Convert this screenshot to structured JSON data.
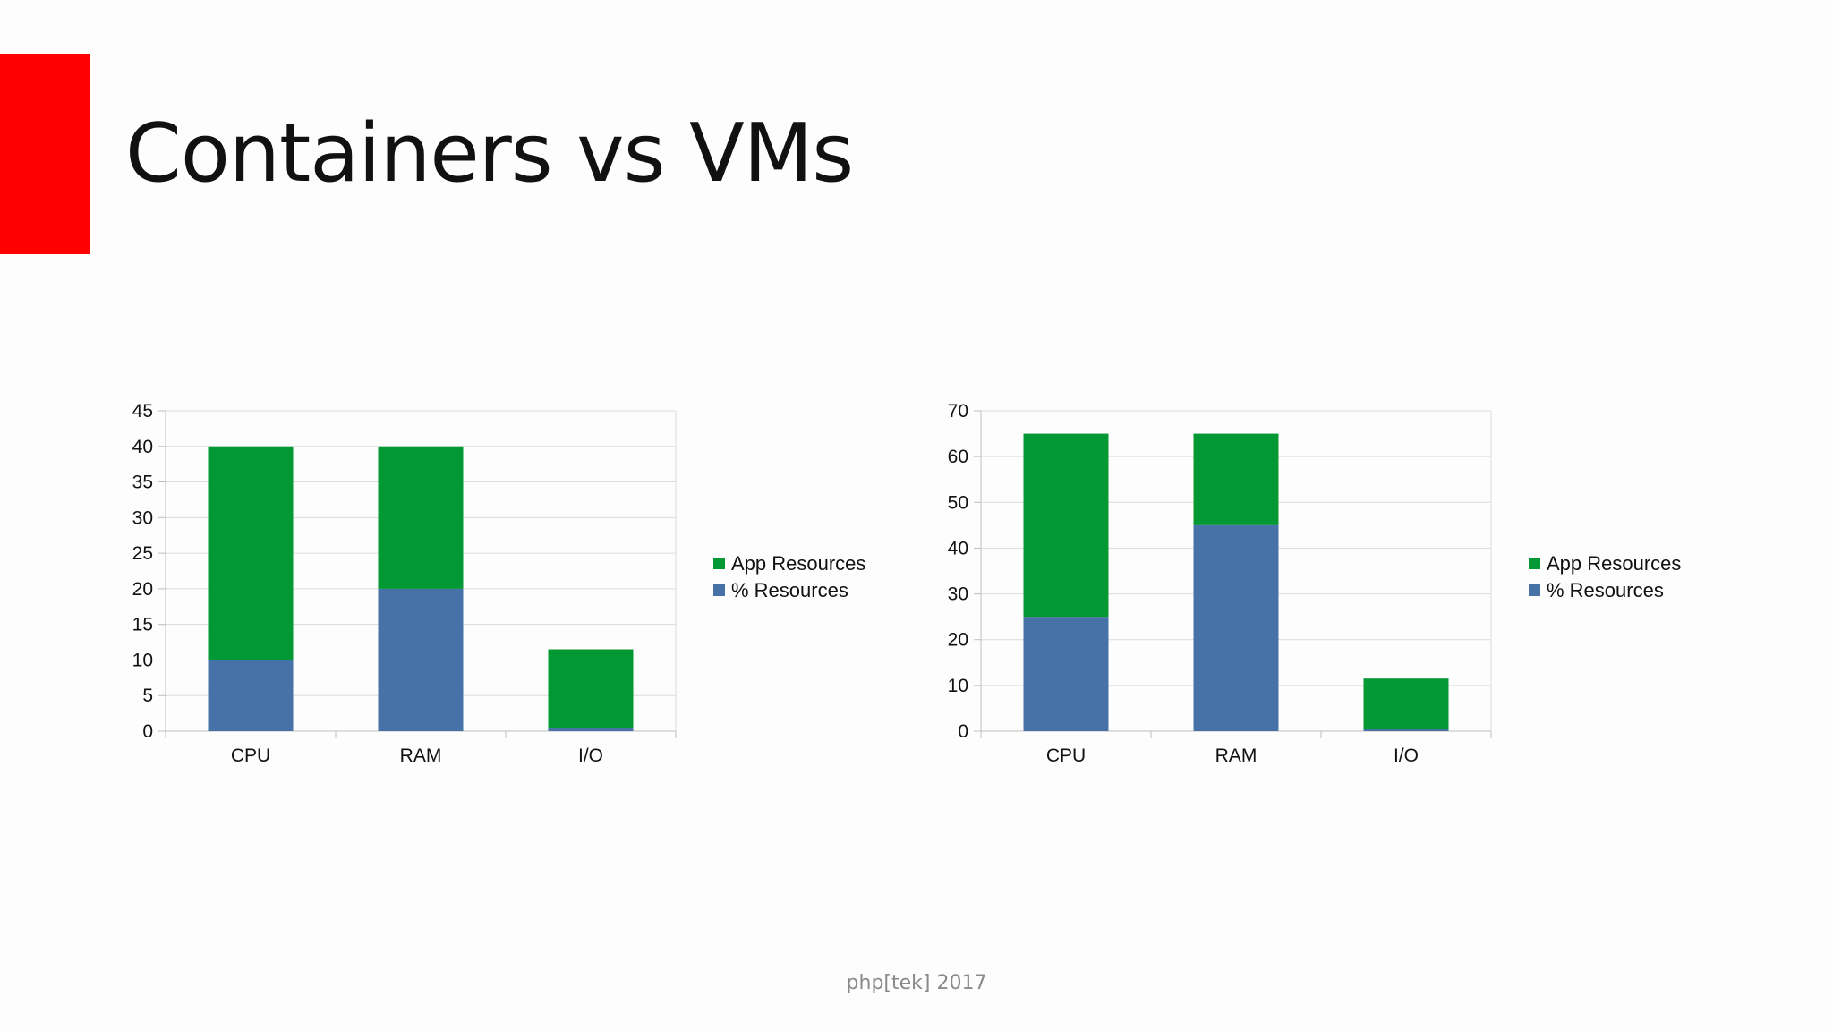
{
  "slide": {
    "title": "Containers vs VMs",
    "footer": "php[tek] 2017",
    "accent_color": "#ff0000"
  },
  "colors": {
    "app_resources": "#029934",
    "pct_resources": "#4672a8",
    "grid": "#dcdcdc",
    "axis": "#bfbfbf"
  },
  "chart_data": [
    {
      "type": "bar",
      "stacked": true,
      "categories": [
        "CPU",
        "RAM",
        "I/O"
      ],
      "series": [
        {
          "name": "% Resources",
          "values": [
            10,
            20,
            0.5
          ]
        },
        {
          "name": "App Resources",
          "values": [
            30,
            20,
            11
          ]
        }
      ],
      "legend_order": [
        "App Resources",
        "% Resources"
      ],
      "legend_position": "right",
      "ylim": [
        0,
        45
      ],
      "yticks": [
        0,
        5,
        10,
        15,
        20,
        25,
        30,
        35,
        40,
        45
      ],
      "grid": true,
      "title": "",
      "xlabel": "",
      "ylabel": ""
    },
    {
      "type": "bar",
      "stacked": true,
      "categories": [
        "CPU",
        "RAM",
        "I/O"
      ],
      "series": [
        {
          "name": "% Resources",
          "values": [
            25,
            45,
            0.5
          ]
        },
        {
          "name": "App Resources",
          "values": [
            40,
            20,
            11
          ]
        }
      ],
      "legend_order": [
        "App Resources",
        "% Resources"
      ],
      "legend_position": "right",
      "ylim": [
        0,
        70
      ],
      "yticks": [
        0,
        10,
        20,
        30,
        40,
        50,
        60,
        70
      ],
      "grid": true,
      "title": "",
      "xlabel": "",
      "ylabel": ""
    }
  ]
}
